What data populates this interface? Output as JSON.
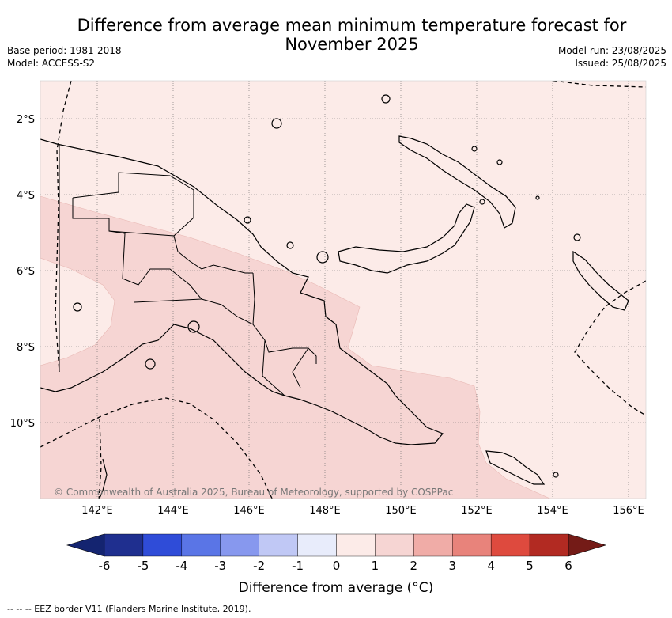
{
  "title_line1": "Difference from average mean minimum temperature forecast for",
  "title_line2": "November 2025",
  "base_period": "Base period: 1981-2018",
  "model": "Model: ACCESS-S2",
  "model_run": "Model run: 23/08/2025",
  "issued": "Issued: 25/08/2025",
  "lat_ticks": [
    "2°S",
    "4°S",
    "6°S",
    "8°S",
    "10°S"
  ],
  "lon_ticks": [
    "142°E",
    "144°E",
    "146°E",
    "148°E",
    "150°E",
    "152°E",
    "154°E",
    "156°E"
  ],
  "copyright": "© Commonwealth of Australia 2025, Bureau of Meteorology, supported by COSPPac",
  "colorbar": {
    "labels": [
      "-6",
      "-5",
      "-4",
      "-3",
      "-2",
      "-1",
      "0",
      "1",
      "2",
      "3",
      "4",
      "5",
      "6"
    ],
    "colors": [
      "#1f2f8f",
      "#2f4cd8",
      "#5a75e6",
      "#8798ee",
      "#c0c8f5",
      "#e8ecfb",
      "#fcebe8",
      "#f6d5d3",
      "#f0aca7",
      "#e8837b",
      "#de4a3e",
      "#b22a22"
    ],
    "under_color": "#142470",
    "over_color": "#741b17",
    "title": "Difference from average (°C)"
  },
  "map_colors": {
    "low_anomaly_fill": "#fcebe8",
    "mid_anomaly_fill": "#f6d5d3"
  },
  "footnote": "--  --  -- EEZ border V11 (Flanders Marine Institute, 2019)."
}
